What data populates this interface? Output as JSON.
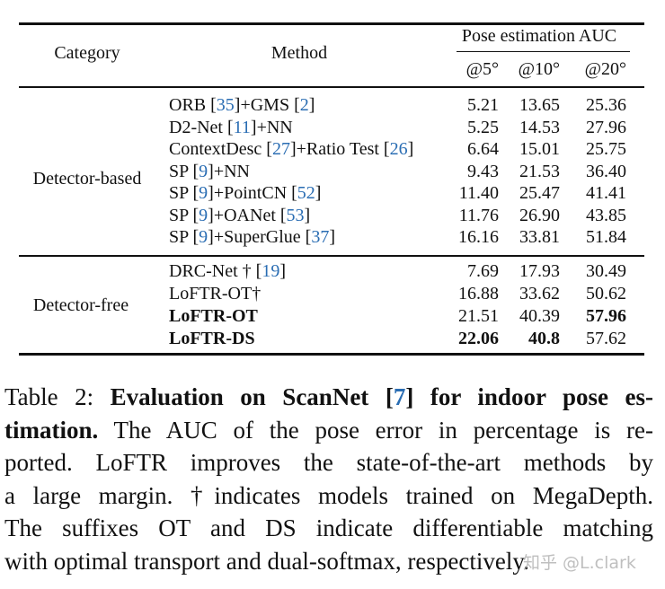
{
  "table": {
    "headers": {
      "category": "Category",
      "method": "Method",
      "group": "Pose estimation AUC",
      "metrics": [
        "@5°",
        "@10°",
        "@20°"
      ]
    },
    "groups": [
      {
        "category": "Detector-based",
        "rows": [
          {
            "method": [
              {
                "t": "ORB "
              },
              {
                "t": "[",
                "c": 0
              },
              {
                "t": "35",
                "cite": true
              },
              {
                "t": "]+GMS "
              },
              {
                "t": "2",
                "cite": true,
                "br": true
              }
            ],
            "values": [
              "5.21",
              "13.65",
              "25.36"
            ],
            "bold": [
              false,
              false,
              false
            ]
          },
          {
            "method": [
              {
                "t": "D2-Net ["
              },
              {
                "t": "11",
                "cite": true
              },
              {
                "t": "]+NN"
              }
            ],
            "values": [
              "5.25",
              "14.53",
              "27.96"
            ],
            "bold": [
              false,
              false,
              false
            ]
          },
          {
            "method": [
              {
                "t": "ContextDesc ["
              },
              {
                "t": "27",
                "cite": true
              },
              {
                "t": "]+Ratio Test ["
              },
              {
                "t": "26",
                "cite": true
              },
              {
                "t": "]"
              }
            ],
            "values": [
              "6.64",
              "15.01",
              "25.75"
            ],
            "bold": [
              false,
              false,
              false
            ]
          },
          {
            "method": [
              {
                "t": "SP ["
              },
              {
                "t": "9",
                "cite": true
              },
              {
                "t": "]+NN"
              }
            ],
            "values": [
              "9.43",
              "21.53",
              "36.40"
            ],
            "bold": [
              false,
              false,
              false
            ]
          },
          {
            "method": [
              {
                "t": "SP ["
              },
              {
                "t": "9",
                "cite": true
              },
              {
                "t": "]+PointCN ["
              },
              {
                "t": "52",
                "cite": true
              },
              {
                "t": "]"
              }
            ],
            "values": [
              "11.40",
              "25.47",
              "41.41"
            ],
            "bold": [
              false,
              false,
              false
            ]
          },
          {
            "method": [
              {
                "t": "SP ["
              },
              {
                "t": "9",
                "cite": true
              },
              {
                "t": "]+OANet ["
              },
              {
                "t": "53",
                "cite": true
              },
              {
                "t": "]"
              }
            ],
            "values": [
              "11.76",
              "26.90",
              "43.85"
            ],
            "bold": [
              false,
              false,
              false
            ]
          },
          {
            "method": [
              {
                "t": "SP ["
              },
              {
                "t": "9",
                "cite": true
              },
              {
                "t": "]+SuperGlue ["
              },
              {
                "t": "37",
                "cite": true
              },
              {
                "t": "]"
              }
            ],
            "values": [
              "16.16",
              "33.81",
              "51.84"
            ],
            "bold": [
              false,
              false,
              false
            ]
          }
        ]
      },
      {
        "category": "Detector-free",
        "rows": [
          {
            "method": [
              {
                "t": "DRC-Net † ["
              },
              {
                "t": "19",
                "cite": true
              },
              {
                "t": "]"
              }
            ],
            "values": [
              "7.69",
              "17.93",
              "30.49"
            ],
            "bold": [
              false,
              false,
              false
            ]
          },
          {
            "method": [
              {
                "t": "LoFTR-OT†"
              }
            ],
            "values": [
              "16.88",
              "33.62",
              "50.62"
            ],
            "bold": [
              false,
              false,
              false
            ]
          },
          {
            "method": [
              {
                "t": "LoFTR-OT",
                "bold": true
              }
            ],
            "values": [
              "21.51",
              "40.39",
              "57.96"
            ],
            "bold": [
              false,
              false,
              true
            ]
          },
          {
            "method": [
              {
                "t": "LoFTR-DS",
                "bold": true
              }
            ],
            "values": [
              "22.06",
              "40.8",
              "57.62"
            ],
            "bold": [
              true,
              true,
              false
            ]
          }
        ]
      }
    ]
  },
  "caption": {
    "label": "Table 2:",
    "title_before_cite": "Evaluation on ScanNet [",
    "title_cite": "7",
    "title_after_cite": "] for indoor pose es-",
    "title_line2": "timation.",
    "line2_rest": "The AUC of the pose error in percentage is re-",
    "line3": "ported.  LoFTR improves the state-of-the-art methods by",
    "line4": "a large margin.  †indicates models trained on MegaDepth.",
    "line5": "The suffixes OT and DS indicate differentiable matching",
    "line6": "with optimal transport and dual-softmax, respectively."
  },
  "watermark": "知乎 @L.clark",
  "colors": {
    "citation": "#2a6db3",
    "text": "#111111"
  }
}
